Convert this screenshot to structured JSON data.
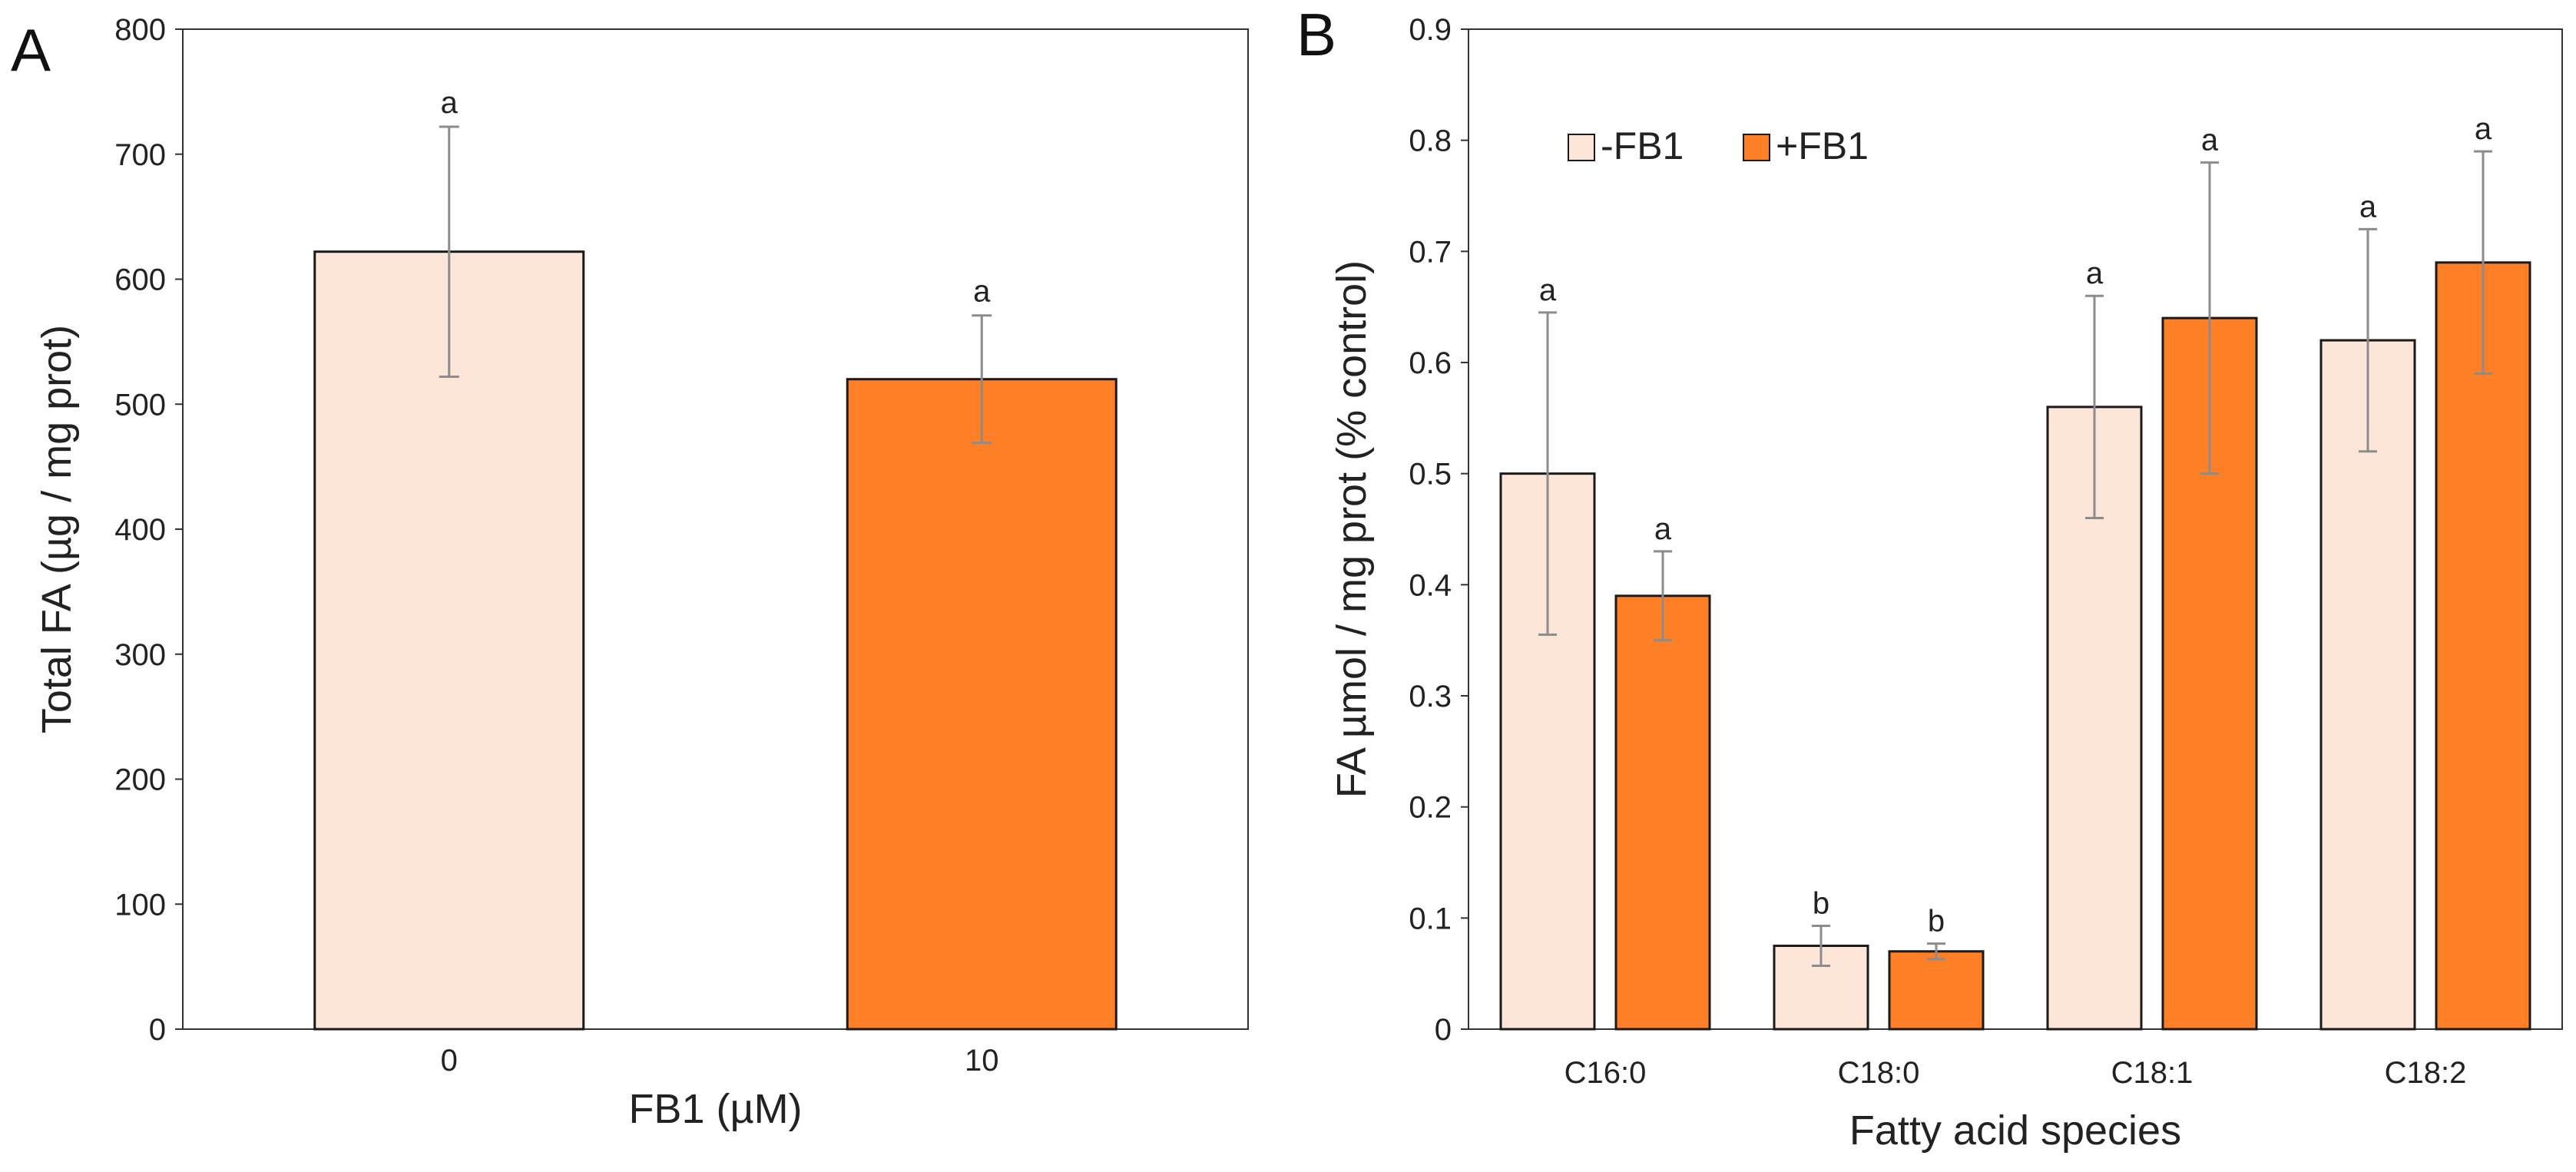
{
  "panels": {
    "a": {
      "letter": "A"
    },
    "b": {
      "letter": "B"
    }
  },
  "colors": {
    "control": "#fde5d8",
    "treated": "#fe7f26",
    "bar_outline": "#1a1a1a",
    "error_bar": "#8c8c8c",
    "axis": "#333333",
    "text": "#222222"
  },
  "chart_data": [
    {
      "panel": "A",
      "type": "bar",
      "title": "",
      "xlabel": "FB1 (µM)",
      "ylabel": "Total FA (µg / mg prot)",
      "categories": [
        "0",
        "10"
      ],
      "values": [
        622,
        520
      ],
      "errors": [
        100,
        51
      ],
      "significance": [
        "a",
        "a"
      ],
      "bar_colors": [
        "#fde5d8",
        "#fe7f26"
      ],
      "ylim": [
        0,
        800
      ],
      "yticks": [
        "0",
        "100",
        "200",
        "300",
        "400",
        "500",
        "600",
        "700",
        "800"
      ],
      "grid": false
    },
    {
      "panel": "B",
      "type": "bar",
      "title": "",
      "xlabel": "Fatty acid species",
      "ylabel": "FA µmol / mg prot (%  control)",
      "categories": [
        "C16:0",
        "C18:0",
        "C18:1",
        "C18:2"
      ],
      "series": [
        {
          "name": "-FB1",
          "color": "#fde5d8",
          "values": [
            0.5,
            0.075,
            0.56,
            0.62
          ],
          "errors": [
            0.145,
            0.018,
            0.1,
            0.1
          ],
          "significance": [
            "a",
            "b",
            "a",
            "a"
          ]
        },
        {
          "name": "+FB1",
          "color": "#fe7f26",
          "values": [
            0.39,
            0.07,
            0.64,
            0.69
          ],
          "errors": [
            0.04,
            0.007,
            0.14,
            0.1
          ],
          "significance": [
            "a",
            "b",
            "a",
            "a"
          ]
        }
      ],
      "ylim": [
        0,
        0.9
      ],
      "yticks": [
        "0",
        "0.1",
        "0.2",
        "0.3",
        "0.4",
        "0.5",
        "0.6",
        "0.7",
        "0.8",
        "0.9"
      ],
      "legend_position": "top-left",
      "grid": false
    }
  ]
}
